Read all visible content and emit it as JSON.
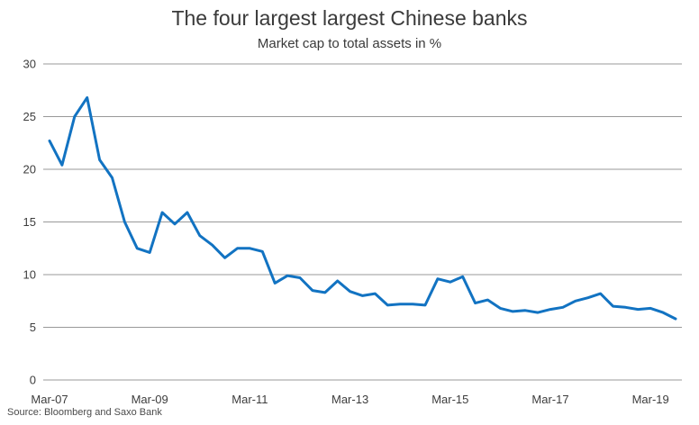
{
  "header": {
    "title": "The four largest largest Chinese banks",
    "subtitle": "Market cap to total assets in %"
  },
  "footer": {
    "source": "Source: Bloomberg and Saxo Bank"
  },
  "chart_data": {
    "type": "line",
    "title": "The four largest largest Chinese banks",
    "subtitle": "Market cap to total assets in %",
    "series_name": "Market cap to total assets (%)",
    "x": [
      "Mar-07",
      "Jun-07",
      "Sep-07",
      "Dec-07",
      "Mar-08",
      "Jun-08",
      "Sep-08",
      "Dec-08",
      "Mar-09",
      "Jun-09",
      "Sep-09",
      "Dec-09",
      "Mar-10",
      "Jun-10",
      "Sep-10",
      "Dec-10",
      "Mar-11",
      "Jun-11",
      "Sep-11",
      "Dec-11",
      "Mar-12",
      "Jun-12",
      "Sep-12",
      "Dec-12",
      "Mar-13",
      "Jun-13",
      "Sep-13",
      "Dec-13",
      "Mar-14",
      "Jun-14",
      "Sep-14",
      "Dec-14",
      "Mar-15",
      "Jun-15",
      "Sep-15",
      "Dec-15",
      "Mar-16",
      "Jun-16",
      "Sep-16",
      "Dec-16",
      "Mar-17",
      "Jun-17",
      "Sep-17",
      "Dec-17",
      "Mar-18",
      "Jun-18",
      "Sep-18",
      "Dec-18",
      "Mar-19",
      "Jun-19",
      "Sep-19"
    ],
    "values": [
      22.7,
      20.4,
      25.0,
      26.8,
      20.9,
      19.2,
      15.0,
      12.5,
      12.1,
      15.9,
      14.8,
      15.9,
      13.7,
      12.8,
      11.6,
      12.5,
      12.5,
      12.2,
      9.2,
      9.9,
      9.7,
      8.5,
      8.3,
      9.4,
      8.4,
      8.0,
      8.2,
      7.1,
      7.2,
      7.2,
      7.1,
      9.6,
      9.3,
      9.8,
      7.3,
      7.6,
      6.8,
      6.5,
      6.6,
      6.4,
      6.7,
      6.9,
      7.5,
      7.8,
      8.2,
      7.0,
      6.9,
      6.7,
      6.8,
      6.4,
      5.8
    ],
    "ylim": [
      0,
      30
    ],
    "yticks": [
      0,
      5,
      10,
      15,
      20,
      25,
      30
    ],
    "xtick_labels": [
      "Mar-07",
      "Mar-09",
      "Mar-11",
      "Mar-13",
      "Mar-15",
      "Mar-17",
      "Mar-19"
    ],
    "grid": "horizontal",
    "legend": "none",
    "line_color": "#1273C2",
    "grid_color": "#999999",
    "source": "Source: Bloomberg and Saxo Bank"
  }
}
